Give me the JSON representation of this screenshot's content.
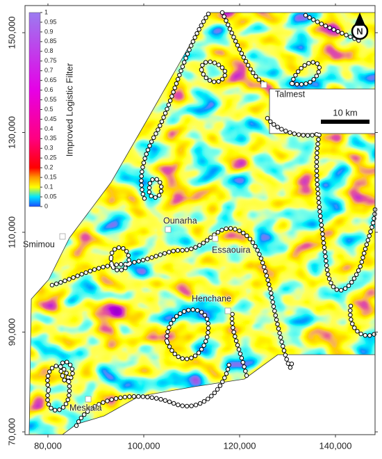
{
  "colorbar": {
    "title": "Improved Logistic Filter",
    "ticks": [
      1,
      0.95,
      0.9,
      0.85,
      0.8,
      0.75,
      0.7,
      0.65,
      0.6,
      0.55,
      0.5,
      0.45,
      0.4,
      0.35,
      0.3,
      0.25,
      0.2,
      0.15,
      0.1,
      0.05,
      0
    ],
    "lim": [
      0,
      1
    ]
  },
  "axes": {
    "xlim": [
      75000,
      148000
    ],
    "ylim": [
      69000,
      156000
    ],
    "xticks": [
      {
        "value": 80000,
        "label": "80,000"
      },
      {
        "value": 100000,
        "label": "100,000"
      },
      {
        "value": 120000,
        "label": "120,000"
      },
      {
        "value": 140000,
        "label": "140,000"
      }
    ],
    "yticks": [
      {
        "value": 70000,
        "label": "70,000"
      },
      {
        "value": 90000,
        "label": "90,000"
      },
      {
        "value": 110000,
        "label": "110,000"
      },
      {
        "value": 130000,
        "label": "130,000"
      },
      {
        "value": 150000,
        "label": "150,000"
      }
    ]
  },
  "places": [
    "Talmest",
    "Ounarha",
    "Essaouira",
    "Henchane",
    "Meskala",
    "Smimou"
  ],
  "scale_bar": "10 km",
  "north": "N"
}
